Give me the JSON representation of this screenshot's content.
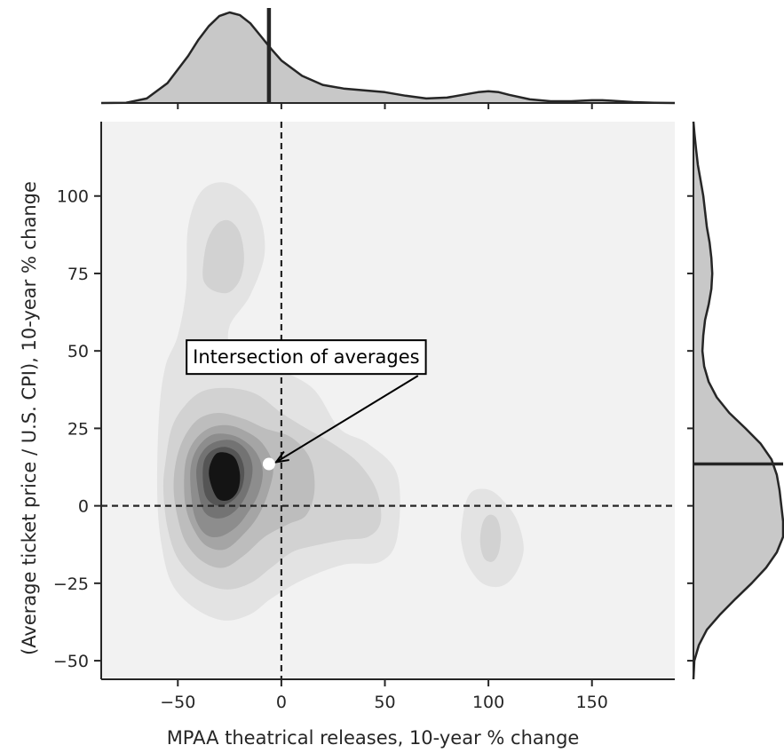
{
  "chart_data": {
    "type": "kde_jointplot",
    "title": "",
    "xlabel": "MPAA theatrical releases, 10-year % change",
    "ylabel": "(Average ticket price / U.S. CPI), 10-year % change",
    "xlim": [
      -87,
      190
    ],
    "ylim": [
      -56,
      124
    ],
    "xticks": [
      -50,
      0,
      50,
      100,
      150
    ],
    "yticks": [
      -50,
      -25,
      0,
      25,
      50,
      75,
      100
    ],
    "grid": false,
    "reference_lines": {
      "x": 0,
      "y": 0,
      "style": "dashed"
    },
    "averages": {
      "x": -6,
      "y": 13.5
    },
    "annotation": {
      "text": "Intersection of averages",
      "box_center": [
        12,
        48
      ],
      "arrow_tail": [
        66,
        42
      ],
      "arrow_target": [
        -6,
        13.5
      ]
    },
    "density_contours": [
      {
        "level": 1,
        "fill": "#e3e3e3",
        "polygons": [
          [
            [
              -60,
              5
            ],
            [
              -59,
              30
            ],
            [
              -56,
              45
            ],
            [
              -50,
              55
            ],
            [
              -46,
              70
            ],
            [
              -45,
              90
            ],
            [
              -38,
              102
            ],
            [
              -25,
              104
            ],
            [
              -12,
              96
            ],
            [
              -8,
              82
            ],
            [
              -15,
              68
            ],
            [
              -25,
              58
            ],
            [
              -23,
              50
            ],
            [
              -5,
              45
            ],
            [
              15,
              38
            ],
            [
              28,
              25
            ],
            [
              42,
              20
            ],
            [
              56,
              10
            ],
            [
              56,
              -10
            ],
            [
              48,
              -18
            ],
            [
              30,
              -19
            ],
            [
              10,
              -24
            ],
            [
              -5,
              -30
            ],
            [
              -15,
              -35
            ],
            [
              -28,
              -37
            ],
            [
              -42,
              -33
            ],
            [
              -53,
              -25
            ],
            [
              -58,
              -12
            ]
          ],
          [
            [
              87,
              -7
            ],
            [
              89,
              1
            ],
            [
              93,
              5
            ],
            [
              101,
              5
            ],
            [
              108,
              1
            ],
            [
              114,
              -5
            ],
            [
              117,
              -14
            ],
            [
              113,
              -22
            ],
            [
              106,
              -26
            ],
            [
              97,
              -25
            ],
            [
              90,
              -19
            ],
            [
              87,
              -12
            ]
          ]
        ]
      },
      {
        "level": 2,
        "fill": "#d2d2d2",
        "polygons": [
          [
            [
              -38,
              75
            ],
            [
              -36,
              85
            ],
            [
              -31,
              91
            ],
            [
              -25,
              92
            ],
            [
              -20,
              88
            ],
            [
              -18,
              80
            ],
            [
              -20,
              73
            ],
            [
              -25,
              69
            ],
            [
              -31,
              69
            ],
            [
              -36,
              71
            ]
          ],
          [
            [
              -57,
              5
            ],
            [
              -56,
              14
            ],
            [
              -53,
              25
            ],
            [
              -47,
              32
            ],
            [
              -38,
              37
            ],
            [
              -25,
              38
            ],
            [
              -12,
              36
            ],
            [
              0,
              30
            ],
            [
              12,
              25
            ],
            [
              25,
              20
            ],
            [
              37,
              14
            ],
            [
              46,
              5
            ],
            [
              48,
              -5
            ],
            [
              42,
              -10
            ],
            [
              30,
              -11
            ],
            [
              15,
              -13
            ],
            [
              5,
              -15
            ],
            [
              -5,
              -20
            ],
            [
              -15,
              -25
            ],
            [
              -27,
              -27
            ],
            [
              -40,
              -24
            ],
            [
              -50,
              -17
            ],
            [
              -55,
              -7
            ]
          ],
          [
            [
              96,
              -12
            ],
            [
              97,
              -6
            ],
            [
              100,
              -3
            ],
            [
              104,
              -4
            ],
            [
              106,
              -9
            ],
            [
              105,
              -15
            ],
            [
              102,
              -18
            ],
            [
              98,
              -17
            ]
          ]
        ]
      },
      {
        "level": 3,
        "fill": "#bdbdbd",
        "polygons": [
          [
            [
              -52,
              5
            ],
            [
              -51,
              14
            ],
            [
              -47,
              22
            ],
            [
              -40,
              28
            ],
            [
              -30,
              30
            ],
            [
              -18,
              28
            ],
            [
              -8,
              25
            ],
            [
              5,
              22
            ],
            [
              14,
              15
            ],
            [
              16,
              5
            ],
            [
              12,
              -3
            ],
            [
              3,
              -6
            ],
            [
              -8,
              -10
            ],
            [
              -18,
              -16
            ],
            [
              -28,
              -20
            ],
            [
              -38,
              -18
            ],
            [
              -46,
              -12
            ],
            [
              -50,
              -4
            ]
          ]
        ]
      },
      {
        "level": 4,
        "fill": "#a5a5a5",
        "polygons": [
          [
            [
              -47,
              7
            ],
            [
              -46,
              15
            ],
            [
              -42,
              21
            ],
            [
              -35,
              25
            ],
            [
              -26,
              26
            ],
            [
              -17,
              24
            ],
            [
              -9,
              20
            ],
            [
              -4,
              13
            ],
            [
              -6,
              5
            ],
            [
              -11,
              -3
            ],
            [
              -18,
              -9
            ],
            [
              -27,
              -14
            ],
            [
              -36,
              -13
            ],
            [
              -42,
              -8
            ],
            [
              -46,
              -1
            ]
          ]
        ]
      },
      {
        "level": 5,
        "fill": "#8d8d8d",
        "polygons": [
          [
            [
              -44,
              8
            ],
            [
              -43,
              15
            ],
            [
              -39,
              20
            ],
            [
              -33,
              23
            ],
            [
              -25,
              23
            ],
            [
              -18,
              21
            ],
            [
              -12,
              17
            ],
            [
              -9,
              11
            ],
            [
              -11,
              4
            ],
            [
              -16,
              -2
            ],
            [
              -22,
              -7
            ],
            [
              -30,
              -10
            ],
            [
              -37,
              -9
            ],
            [
              -42,
              -3
            ]
          ]
        ]
      },
      {
        "level": 6,
        "fill": "#737373",
        "polygons": [
          [
            [
              -41,
              9
            ],
            [
              -40,
              15
            ],
            [
              -36,
              19
            ],
            [
              -30,
              21
            ],
            [
              -23,
              21
            ],
            [
              -17,
              18
            ],
            [
              -14,
              13
            ],
            [
              -15,
              7
            ],
            [
              -19,
              1
            ],
            [
              -25,
              -3
            ],
            [
              -32,
              -4
            ],
            [
              -38,
              -1
            ]
          ]
        ]
      },
      {
        "level": 7,
        "fill": "#555555",
        "polygons": [
          [
            [
              -38,
              10
            ],
            [
              -37,
              15
            ],
            [
              -33,
              18
            ],
            [
              -27,
              19
            ],
            [
              -21,
              17
            ],
            [
              -18,
              12
            ],
            [
              -19,
              6
            ],
            [
              -23,
              2
            ],
            [
              -29,
              0
            ],
            [
              -34,
              1
            ],
            [
              -37,
              4
            ]
          ]
        ]
      },
      {
        "level": 8,
        "fill": "#141414",
        "polygons": [
          [
            [
              -35,
              10
            ],
            [
              -34,
              14
            ],
            [
              -31,
              17
            ],
            [
              -26,
              17
            ],
            [
              -22,
              15
            ],
            [
              -20,
              10
            ],
            [
              -21,
              5
            ],
            [
              -25,
              2
            ],
            [
              -30,
              2
            ],
            [
              -33,
              5
            ]
          ]
        ]
      }
    ],
    "marginal_x_density": {
      "x": [
        -87,
        -75,
        -65,
        -55,
        -45,
        -40,
        -35,
        -30,
        -25,
        -20,
        -15,
        -10,
        -5,
        0,
        10,
        20,
        30,
        40,
        50,
        60,
        70,
        80,
        90,
        95,
        100,
        105,
        110,
        120,
        130,
        140,
        150,
        155,
        160,
        170,
        180,
        190
      ],
      "y": [
        0.0,
        0.003,
        0.05,
        0.22,
        0.52,
        0.7,
        0.85,
        0.96,
        1.0,
        0.97,
        0.88,
        0.74,
        0.6,
        0.47,
        0.3,
        0.2,
        0.16,
        0.14,
        0.12,
        0.08,
        0.05,
        0.06,
        0.1,
        0.12,
        0.13,
        0.12,
        0.09,
        0.04,
        0.02,
        0.02,
        0.03,
        0.03,
        0.025,
        0.01,
        0.003,
        0.0
      ],
      "mean_line_x": -6
    },
    "marginal_y_density": {
      "y": [
        -56,
        -50,
        -45,
        -40,
        -35,
        -30,
        -25,
        -20,
        -15,
        -10,
        -5,
        0,
        5,
        10,
        15,
        20,
        25,
        30,
        35,
        40,
        45,
        50,
        55,
        60,
        65,
        70,
        75,
        80,
        85,
        90,
        95,
        100,
        105,
        110,
        115,
        120,
        124
      ],
      "d": [
        0.0,
        0.01,
        0.06,
        0.15,
        0.3,
        0.47,
        0.65,
        0.81,
        0.93,
        1.0,
        1.0,
        0.98,
        0.96,
        0.93,
        0.87,
        0.75,
        0.58,
        0.4,
        0.26,
        0.17,
        0.12,
        0.1,
        0.11,
        0.13,
        0.17,
        0.2,
        0.21,
        0.2,
        0.18,
        0.15,
        0.13,
        0.11,
        0.08,
        0.05,
        0.03,
        0.012,
        0.0
      ],
      "mean_line_y": 13.5
    },
    "colors": {
      "plot_background": "#f2f2f2",
      "marginal_fill": "#c8c8c8",
      "line": "#262626",
      "point": "#ffffff"
    }
  }
}
